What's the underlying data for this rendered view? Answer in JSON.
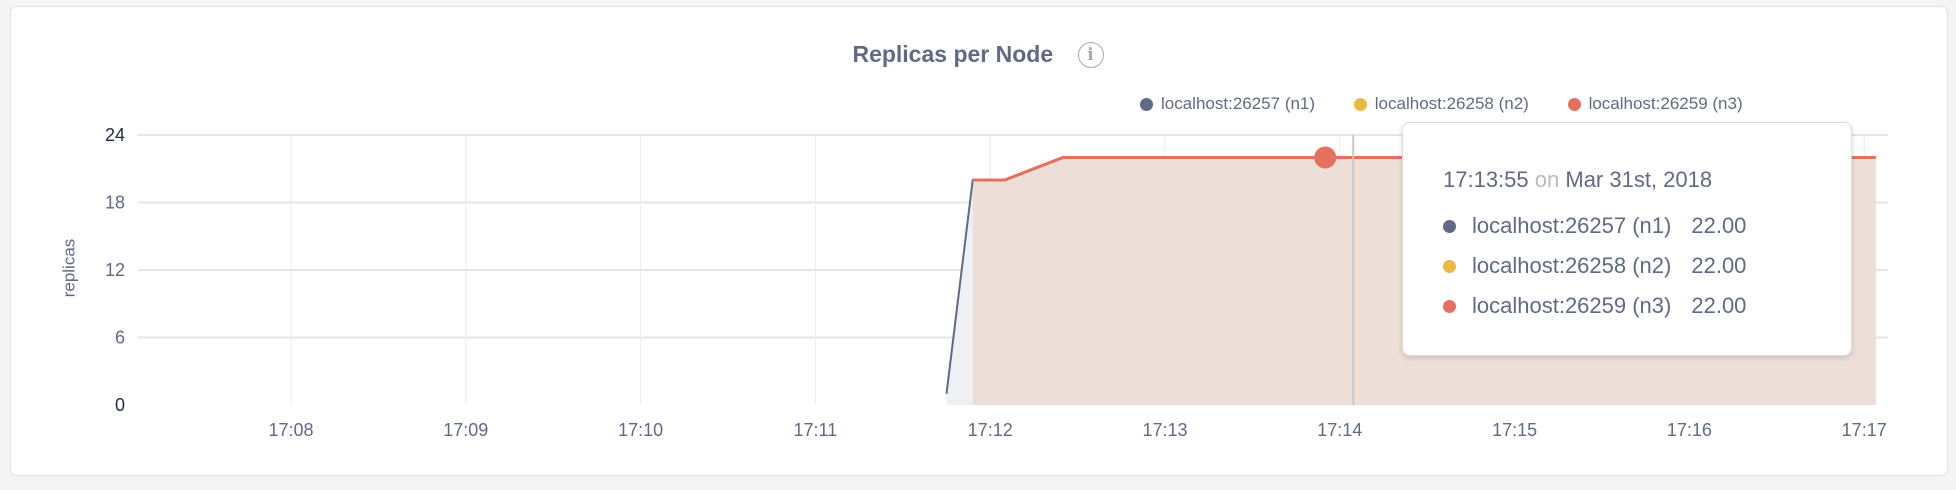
{
  "chart_data": {
    "type": "area",
    "title": "Replicas per Node",
    "xlabel": "",
    "ylabel": "replicas",
    "y_ticks": [
      "0",
      "6",
      "12",
      "18",
      "24"
    ],
    "ylim": [
      0,
      24
    ],
    "x_ticks": [
      "17:08",
      "17:09",
      "17:10",
      "17:11",
      "17:12",
      "17:13",
      "17:14",
      "17:15",
      "17:16",
      "17:17"
    ],
    "grid": true,
    "legend_position": "top-right",
    "series": [
      {
        "name": "localhost:26257 (n1)",
        "color": "#5f6a87",
        "points": [
          [
            "17:11:45",
            1
          ],
          [
            "17:11:54",
            20
          ],
          [
            "17:12:05",
            20
          ],
          [
            "17:12:25",
            22
          ],
          [
            "17:17:04",
            22
          ]
        ]
      },
      {
        "name": "localhost:26258 (n2)",
        "color": "#e9bb43",
        "points": [
          [
            "17:11:54",
            20
          ],
          [
            "17:12:05",
            20
          ],
          [
            "17:12:25",
            22
          ],
          [
            "17:17:04",
            22
          ]
        ]
      },
      {
        "name": "localhost:26259 (n3)",
        "color": "#e5705e",
        "points": [
          [
            "17:11:54",
            20
          ],
          [
            "17:12:05",
            20
          ],
          [
            "17:12:25",
            22
          ],
          [
            "17:17:04",
            22
          ]
        ]
      }
    ]
  },
  "tooltip": {
    "time": "17:13:55",
    "on": "on",
    "date": "Mar 31st, 2018",
    "rows": [
      {
        "label": "localhost:26257 (n1)",
        "value": "22.00",
        "color": "#5f6a87"
      },
      {
        "label": "localhost:26258 (n2)",
        "value": "22.00",
        "color": "#e9bb43"
      },
      {
        "label": "localhost:26259 (n3)",
        "value": "22.00",
        "color": "#e5705e"
      }
    ]
  },
  "info_icon": "info-circle-icon",
  "info_glyph": "i"
}
